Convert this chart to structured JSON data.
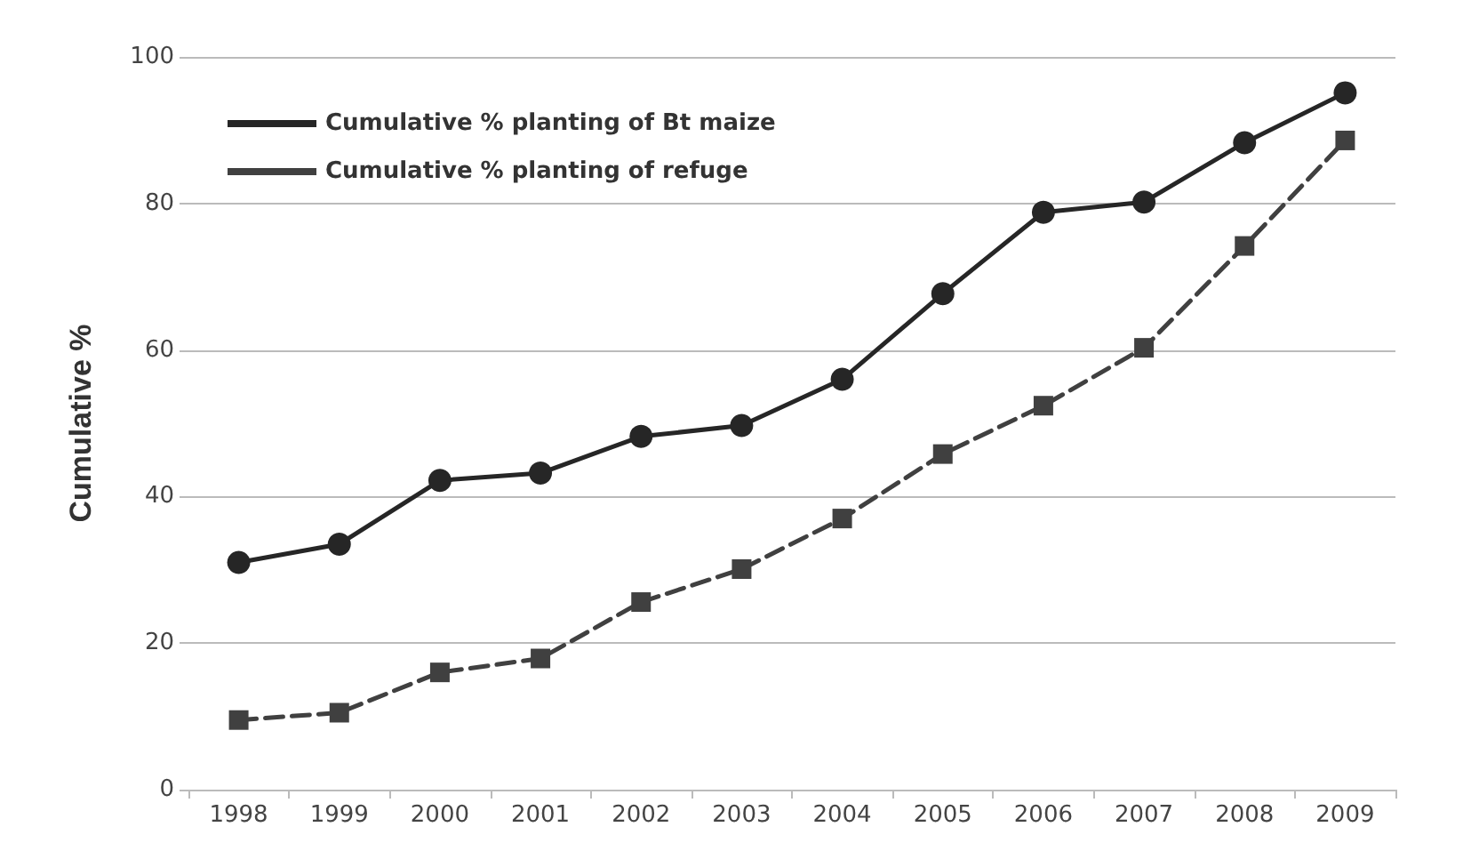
{
  "chart_data": {
    "type": "line",
    "ylabel": "Cumulative %",
    "categories": [
      "1998",
      "1999",
      "2000",
      "2001",
      "2002",
      "2003",
      "2004",
      "2005",
      "2006",
      "2007",
      "2008",
      "2009"
    ],
    "series": [
      {
        "name": "Cumulative % planting of Bt maize",
        "color": "#262626",
        "marker": "circle",
        "line_style": "solid",
        "values": [
          31,
          33.5,
          42.2,
          43.2,
          48.2,
          49.7,
          56,
          67.7,
          78.8,
          80.2,
          88.3,
          95.1
        ]
      },
      {
        "name": "Cumulative % planting of refuge",
        "color": "#404040",
        "marker": "square",
        "line_style": "dashed",
        "values": [
          9.5,
          10.5,
          16,
          17.9,
          25.6,
          30.1,
          37,
          45.8,
          52.4,
          60.3,
          74.2,
          88.6
        ]
      }
    ],
    "ylim": [
      0,
      100
    ],
    "yticks": [
      0,
      20,
      40,
      60,
      80,
      100
    ],
    "grid": "y",
    "legend": "top left"
  }
}
